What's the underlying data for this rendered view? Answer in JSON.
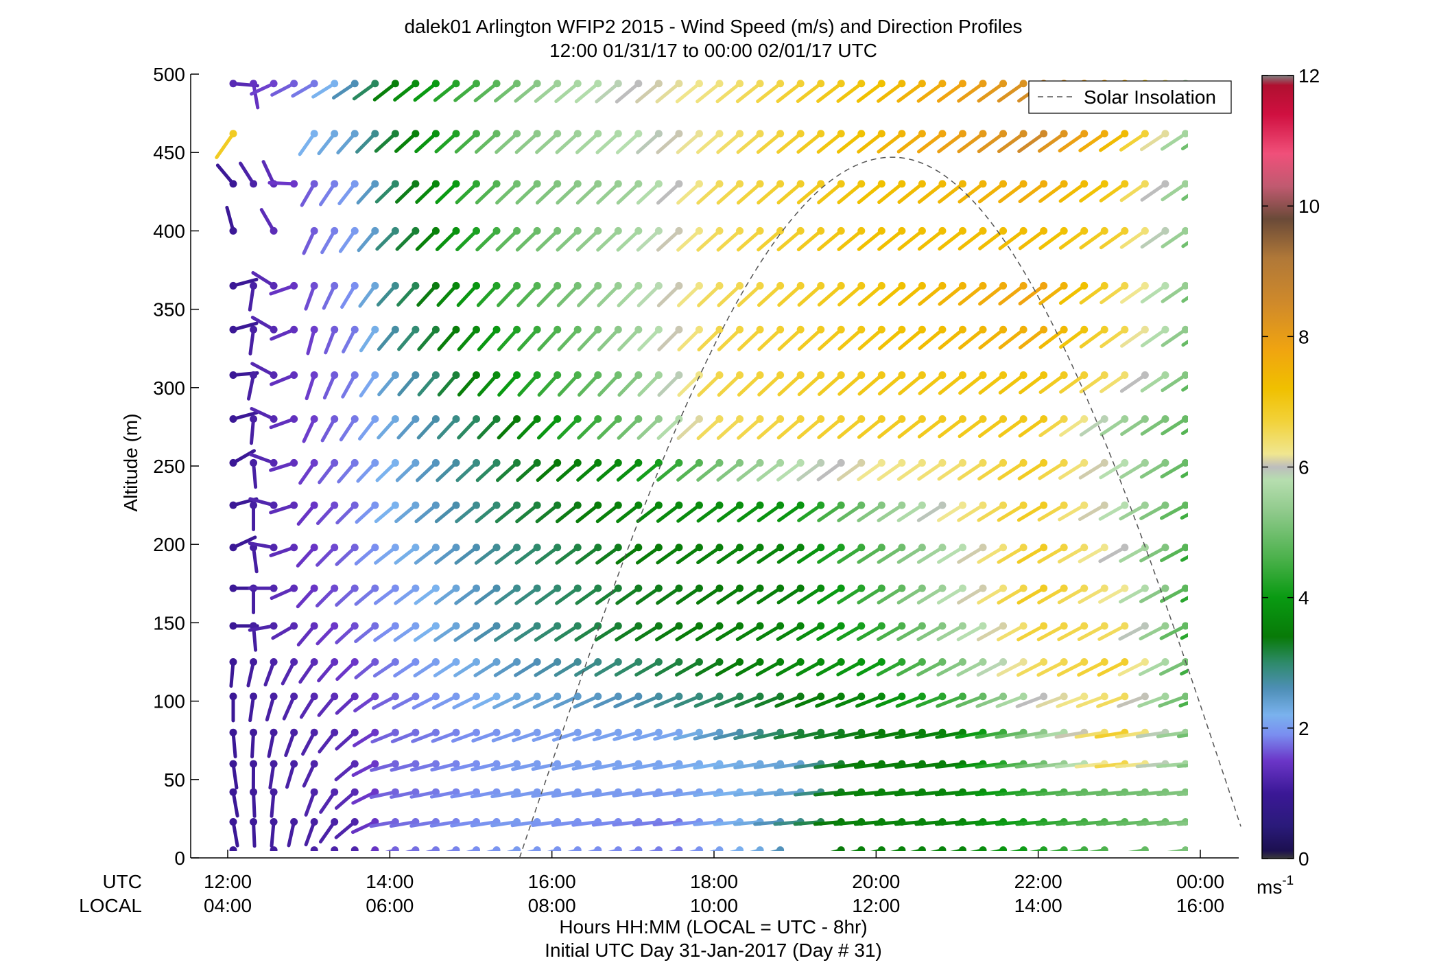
{
  "chart_data": {
    "type": "wind-barb-profile",
    "title": "dalek01 Arlington WFIP2 2015 - Wind Speed (m/s) and Direction Profiles",
    "subtitle": "12:00 01/31/17 to 00:00 02/01/17  UTC",
    "ylabel": "Altitude (m)",
    "xlabel": "Hours HH:MM  (LOCAL = UTC - 8hr)",
    "xlabel2": "Initial UTC Day 31-Jan-2017 (Day # 31)",
    "row_labels": {
      "utc": "UTC",
      "local": "LOCAL"
    },
    "x_ticks_utc": [
      "12:00",
      "14:00",
      "16:00",
      "18:00",
      "20:00",
      "22:00",
      "00:00"
    ],
    "x_ticks_local": [
      "04:00",
      "06:00",
      "08:00",
      "10:00",
      "12:00",
      "14:00",
      "16:00"
    ],
    "x_tick_hours": [
      12,
      14,
      16,
      18,
      20,
      22,
      24
    ],
    "x_range_hours": [
      11.35,
      24.5
    ],
    "y_ticks": [
      0,
      50,
      100,
      150,
      200,
      250,
      300,
      350,
      400,
      450,
      500
    ],
    "ylim": [
      0,
      500
    ],
    "legend": {
      "label": "Solar Insolation",
      "position": "top-right",
      "style": "dashed"
    },
    "colorbar": {
      "min": 0,
      "max": 12,
      "ticks": [
        0,
        2,
        4,
        6,
        8,
        10,
        12
      ],
      "unit_base": "ms",
      "unit_exp": "-1"
    },
    "solar_curve": {
      "start_hour": 15.6,
      "peak_hour": 20.2,
      "end_hour": 24.5,
      "end_altitude": 20,
      "peak_altitude": 447
    },
    "time_start_hour": 12.0,
    "time_step_hours": 0.25,
    "heights": [
      5,
      23,
      42,
      60,
      80,
      103,
      125,
      148,
      172,
      198,
      225,
      252,
      280,
      308,
      337,
      365,
      400,
      430,
      462,
      494
    ],
    "speed_fields": [
      [
        [
          12.0,
          1.0
        ],
        [
          13.5,
          1.2
        ],
        [
          14.0,
          1.7
        ],
        [
          15.5,
          2.0
        ],
        [
          17.5,
          1.8
        ],
        [
          18.5,
          2.3
        ],
        [
          19.6,
          3.5
        ],
        [
          21.0,
          3.6
        ],
        [
          22.5,
          4.5
        ],
        [
          24.0,
          5.2
        ]
      ],
      [
        [
          12.0,
          1.0
        ],
        [
          13.5,
          1.2
        ],
        [
          14.0,
          1.7
        ],
        [
          15.5,
          2.0
        ],
        [
          17.5,
          1.8
        ],
        [
          18.5,
          2.3
        ],
        [
          19.6,
          3.5
        ],
        [
          21.0,
          3.6
        ],
        [
          22.5,
          4.5
        ],
        [
          24.0,
          5.2
        ]
      ],
      [
        [
          12.0,
          1.0
        ],
        [
          13.5,
          1.3
        ],
        [
          14.0,
          1.7
        ],
        [
          15.5,
          2.0
        ],
        [
          17.5,
          2.0
        ],
        [
          19.0,
          2.4
        ],
        [
          19.6,
          3.5
        ],
        [
          21.0,
          3.6
        ],
        [
          22.5,
          4.8
        ],
        [
          24.0,
          5.2
        ]
      ],
      [
        [
          12.0,
          1.0
        ],
        [
          13.5,
          1.3
        ],
        [
          14.0,
          1.7
        ],
        [
          15.5,
          2.0
        ],
        [
          17.5,
          2.1
        ],
        [
          19.0,
          2.4
        ],
        [
          19.6,
          3.4
        ],
        [
          21.0,
          3.5
        ],
        [
          22.0,
          5.0
        ],
        [
          23.0,
          6.6
        ],
        [
          24.0,
          5.2
        ]
      ],
      [
        [
          12.0,
          1.0
        ],
        [
          13.5,
          1.3
        ],
        [
          14.0,
          1.7
        ],
        [
          15.5,
          2.0
        ],
        [
          17.5,
          2.1
        ],
        [
          19.0,
          3.2
        ],
        [
          21.0,
          3.6
        ],
        [
          22.0,
          5.3
        ],
        [
          23.0,
          6.8
        ],
        [
          24.0,
          5.0
        ]
      ],
      [
        [
          12.0,
          1.0
        ],
        [
          13.5,
          1.4
        ],
        [
          14.0,
          1.7
        ],
        [
          15.5,
          2.3
        ],
        [
          17.0,
          2.6
        ],
        [
          18.0,
          3.0
        ],
        [
          20.0,
          3.7
        ],
        [
          21.0,
          4.5
        ],
        [
          22.0,
          6.0
        ],
        [
          23.0,
          6.5
        ],
        [
          24.0,
          4.6
        ]
      ],
      [
        [
          12.0,
          1.0
        ],
        [
          13.5,
          1.5
        ],
        [
          14.0,
          1.8
        ],
        [
          15.5,
          2.5
        ],
        [
          17.0,
          3.0
        ],
        [
          18.5,
          3.5
        ],
        [
          20.0,
          4.0
        ],
        [
          21.0,
          5.2
        ],
        [
          22.0,
          6.5
        ],
        [
          23.0,
          6.8
        ],
        [
          24.0,
          4.5
        ]
      ],
      [
        [
          12.0,
          1.0
        ],
        [
          13.5,
          1.6
        ],
        [
          14.0,
          1.9
        ],
        [
          15.5,
          2.8
        ],
        [
          17.0,
          3.3
        ],
        [
          19.0,
          3.6
        ],
        [
          20.0,
          4.3
        ],
        [
          21.0,
          5.5
        ],
        [
          22.0,
          6.7
        ],
        [
          23.0,
          6.5
        ],
        [
          24.0,
          4.3
        ]
      ],
      [
        [
          12.0,
          1.0
        ],
        [
          13.5,
          1.7
        ],
        [
          14.0,
          1.9
        ],
        [
          15.5,
          2.8
        ],
        [
          17.0,
          3.3
        ],
        [
          19.0,
          3.5
        ],
        [
          20.0,
          4.5
        ],
        [
          21.0,
          5.8
        ],
        [
          22.0,
          6.9
        ],
        [
          23.0,
          6.2
        ],
        [
          24.0,
          4.3
        ]
      ],
      [
        [
          12.0,
          1.0
        ],
        [
          13.5,
          1.7
        ],
        [
          14.0,
          2.1
        ],
        [
          15.5,
          2.9
        ],
        [
          17.0,
          3.4
        ],
        [
          19.0,
          3.6
        ],
        [
          20.0,
          4.7
        ],
        [
          21.0,
          5.8
        ],
        [
          22.0,
          6.9
        ],
        [
          23.0,
          6.0
        ],
        [
          24.0,
          4.3
        ]
      ],
      [
        [
          12.0,
          1.0
        ],
        [
          13.5,
          1.7
        ],
        [
          14.0,
          2.2
        ],
        [
          15.5,
          3.1
        ],
        [
          17.0,
          3.6
        ],
        [
          19.0,
          3.9
        ],
        [
          20.0,
          5.2
        ],
        [
          21.0,
          6.2
        ],
        [
          22.0,
          6.9
        ],
        [
          23.0,
          5.8
        ],
        [
          24.0,
          4.5
        ]
      ],
      [
        [
          12.0,
          1.0
        ],
        [
          13.5,
          1.8
        ],
        [
          14.0,
          2.2
        ],
        [
          15.5,
          3.2
        ],
        [
          17.0,
          3.8
        ],
        [
          18.0,
          5.0
        ],
        [
          19.0,
          5.8
        ],
        [
          20.0,
          6.2
        ],
        [
          21.0,
          6.4
        ],
        [
          22.0,
          6.9
        ],
        [
          23.0,
          5.8
        ],
        [
          24.0,
          4.6
        ]
      ],
      [
        [
          12.0,
          1.0
        ],
        [
          13.5,
          1.8
        ],
        [
          14.0,
          2.3
        ],
        [
          15.5,
          3.4
        ],
        [
          17.0,
          5.0
        ],
        [
          18.0,
          6.5
        ],
        [
          20.0,
          6.9
        ],
        [
          22.0,
          7.0
        ],
        [
          23.0,
          5.5
        ],
        [
          24.0,
          4.7
        ]
      ],
      [
        [
          12.0,
          1.0
        ],
        [
          13.5,
          1.8
        ],
        [
          14.0,
          2.4
        ],
        [
          15.5,
          4.0
        ],
        [
          17.0,
          5.2
        ],
        [
          18.0,
          6.6
        ],
        [
          20.0,
          7.0
        ],
        [
          22.0,
          7.1
        ],
        [
          23.0,
          6.4
        ],
        [
          24.0,
          4.8
        ]
      ],
      [
        [
          12.0,
          1.0
        ],
        [
          13.5,
          1.8
        ],
        [
          14.0,
          2.7
        ],
        [
          15.5,
          4.2
        ],
        [
          17.0,
          5.5
        ],
        [
          18.0,
          6.6
        ],
        [
          20.0,
          7.1
        ],
        [
          22.0,
          7.6
        ],
        [
          23.0,
          6.6
        ],
        [
          24.0,
          4.9
        ]
      ],
      [
        [
          12.0,
          1.0
        ],
        [
          13.5,
          1.9
        ],
        [
          14.0,
          2.8
        ],
        [
          15.5,
          4.5
        ],
        [
          17.0,
          5.6
        ],
        [
          18.0,
          6.5
        ],
        [
          20.0,
          7.1
        ],
        [
          22.0,
          7.8
        ],
        [
          23.0,
          6.6
        ],
        [
          24.0,
          5.0
        ]
      ],
      [
        [
          12.0,
          1.0
        ],
        [
          13.5,
          2.0
        ],
        [
          14.0,
          2.9
        ],
        [
          15.5,
          4.8
        ],
        [
          17.0,
          5.6
        ],
        [
          18.0,
          6.5
        ],
        [
          20.0,
          7.2
        ],
        [
          22.0,
          7.3
        ],
        [
          23.0,
          6.8
        ],
        [
          24.0,
          5.0
        ]
      ],
      [
        [
          12.0,
          1.0
        ],
        [
          13.5,
          2.0
        ],
        [
          14.0,
          3.0
        ],
        [
          15.5,
          5.0
        ],
        [
          17.0,
          5.5
        ],
        [
          18.0,
          6.5
        ],
        [
          20.0,
          7.2
        ],
        [
          22.0,
          7.6
        ],
        [
          23.0,
          7.0
        ],
        [
          24.0,
          5.0
        ]
      ],
      [
        [
          12.0,
          6.9
        ],
        [
          13.0,
          2.2
        ],
        [
          13.5,
          2.4
        ],
        [
          14.0,
          3.2
        ],
        [
          15.5,
          5.2
        ],
        [
          17.0,
          5.8
        ],
        [
          18.0,
          6.3
        ],
        [
          20.0,
          7.3
        ],
        [
          22.0,
          8.5
        ],
        [
          23.0,
          7.3
        ],
        [
          24.0,
          5.0
        ]
      ],
      [
        [
          12.0,
          1.3
        ],
        [
          13.0,
          1.8
        ],
        [
          13.5,
          2.6
        ],
        [
          14.0,
          3.5
        ],
        [
          15.0,
          4.5
        ],
        [
          16.0,
          5.5
        ],
        [
          17.0,
          6.0
        ],
        [
          18.0,
          6.3
        ],
        [
          20.0,
          7.2
        ],
        [
          22.0,
          8.4
        ],
        [
          23.0,
          7.6
        ],
        [
          24.0,
          5.2
        ]
      ]
    ],
    "direction_fields": [
      [
        [
          12.0,
          160
        ],
        [
          13.0,
          190
        ],
        [
          14.0,
          255
        ],
        [
          19.0,
          255
        ],
        [
          24.0,
          262
        ]
      ],
      [
        [
          12.0,
          170
        ],
        [
          13.0,
          200
        ],
        [
          14.0,
          260
        ],
        [
          19.0,
          265
        ],
        [
          24.0,
          265
        ]
      ],
      [
        [
          12.0,
          170
        ],
        [
          13.0,
          200
        ],
        [
          14.0,
          258
        ],
        [
          19.0,
          264
        ],
        [
          24.0,
          265
        ]
      ],
      [
        [
          12.0,
          172
        ],
        [
          13.0,
          205
        ],
        [
          14.0,
          255
        ],
        [
          19.0,
          262
        ],
        [
          24.0,
          265
        ]
      ],
      [
        [
          12.0,
          175
        ],
        [
          13.0,
          208
        ],
        [
          14.0,
          248
        ],
        [
          19.0,
          258
        ],
        [
          24.0,
          262
        ]
      ],
      [
        [
          12.0,
          180
        ],
        [
          13.0,
          212
        ],
        [
          14.0,
          242
        ],
        [
          18.0,
          248
        ],
        [
          24.0,
          250
        ]
      ],
      [
        [
          12.0,
          185
        ],
        [
          13.0,
          215
        ],
        [
          14.0,
          236
        ],
        [
          17.0,
          240
        ],
        [
          24.0,
          244
        ]
      ],
      [
        [
          12.0,
          90
        ],
        [
          12.5,
          260
        ],
        [
          13.0,
          220
        ],
        [
          14.0,
          235
        ],
        [
          17.0,
          238
        ],
        [
          24.0,
          243
        ]
      ],
      [
        [
          12.0,
          90
        ],
        [
          12.5,
          270
        ],
        [
          13.0,
          222
        ],
        [
          14.0,
          233
        ],
        [
          17.0,
          235
        ],
        [
          24.0,
          242
        ]
      ],
      [
        [
          12.0,
          65
        ],
        [
          12.5,
          280
        ],
        [
          13.0,
          222
        ],
        [
          14.0,
          232
        ],
        [
          17.0,
          234
        ],
        [
          24.0,
          242
        ]
      ],
      [
        [
          12.0,
          75
        ],
        [
          12.5,
          285
        ],
        [
          13.0,
          220
        ],
        [
          14.0,
          230
        ],
        [
          17.0,
          232
        ],
        [
          24.0,
          242
        ]
      ],
      [
        [
          12.0,
          60
        ],
        [
          12.5,
          290
        ],
        [
          13.0,
          215
        ],
        [
          14.0,
          226
        ],
        [
          17.0,
          230
        ],
        [
          24.0,
          240
        ]
      ],
      [
        [
          12.0,
          75
        ],
        [
          12.5,
          295
        ],
        [
          13.0,
          205
        ],
        [
          14.0,
          222
        ],
        [
          17.0,
          226
        ],
        [
          24.0,
          238
        ]
      ],
      [
        [
          12.0,
          85
        ],
        [
          12.5,
          298
        ],
        [
          13.0,
          198
        ],
        [
          14.0,
          220
        ],
        [
          17.0,
          224
        ],
        [
          24.0,
          237
        ]
      ],
      [
        [
          12.0,
          75
        ],
        [
          12.5,
          300
        ],
        [
          13.0,
          195
        ],
        [
          14.0,
          220
        ],
        [
          17.0,
          224
        ],
        [
          24.0,
          236
        ]
      ],
      [
        [
          12.0,
          75
        ],
        [
          12.5,
          302
        ],
        [
          13.0,
          200
        ],
        [
          14.0,
          222
        ],
        [
          17.0,
          225
        ],
        [
          24.0,
          236
        ]
      ],
      [
        [
          12.0,
          345
        ],
        [
          12.5,
          330
        ],
        [
          13.0,
          205
        ],
        [
          14.0,
          225
        ],
        [
          17.0,
          227
        ],
        [
          24.0,
          236
        ]
      ],
      [
        [
          12.0,
          320
        ],
        [
          12.5,
          335
        ],
        [
          13.0,
          210
        ],
        [
          14.0,
          226
        ],
        [
          17.0,
          227
        ],
        [
          24.0,
          236
        ]
      ],
      [
        [
          12.0,
          215
        ],
        [
          13.0,
          215
        ],
        [
          14.0,
          228
        ],
        [
          17.0,
          228
        ],
        [
          24.0,
          237
        ]
      ],
      [
        [
          12.0,
          95
        ],
        [
          12.5,
          245
        ],
        [
          13.0,
          240
        ],
        [
          14.0,
          232
        ],
        [
          17.0,
          230
        ],
        [
          24.0,
          237
        ]
      ]
    ],
    "gaps": [
      [
        0,
        12.25
      ],
      [
        0,
        12.75
      ],
      [
        0,
        19.0
      ],
      [
        0,
        19.25
      ],
      [
        0,
        23.0
      ],
      [
        0,
        23.5
      ],
      [
        0,
        24.0
      ],
      [
        2,
        12.75
      ],
      [
        3,
        13.25
      ],
      [
        18,
        12.25
      ],
      [
        18,
        12.5
      ],
      [
        18,
        12.75
      ],
      [
        19,
        24.0
      ],
      [
        16,
        12.25
      ],
      [
        16,
        12.75
      ]
    ]
  }
}
